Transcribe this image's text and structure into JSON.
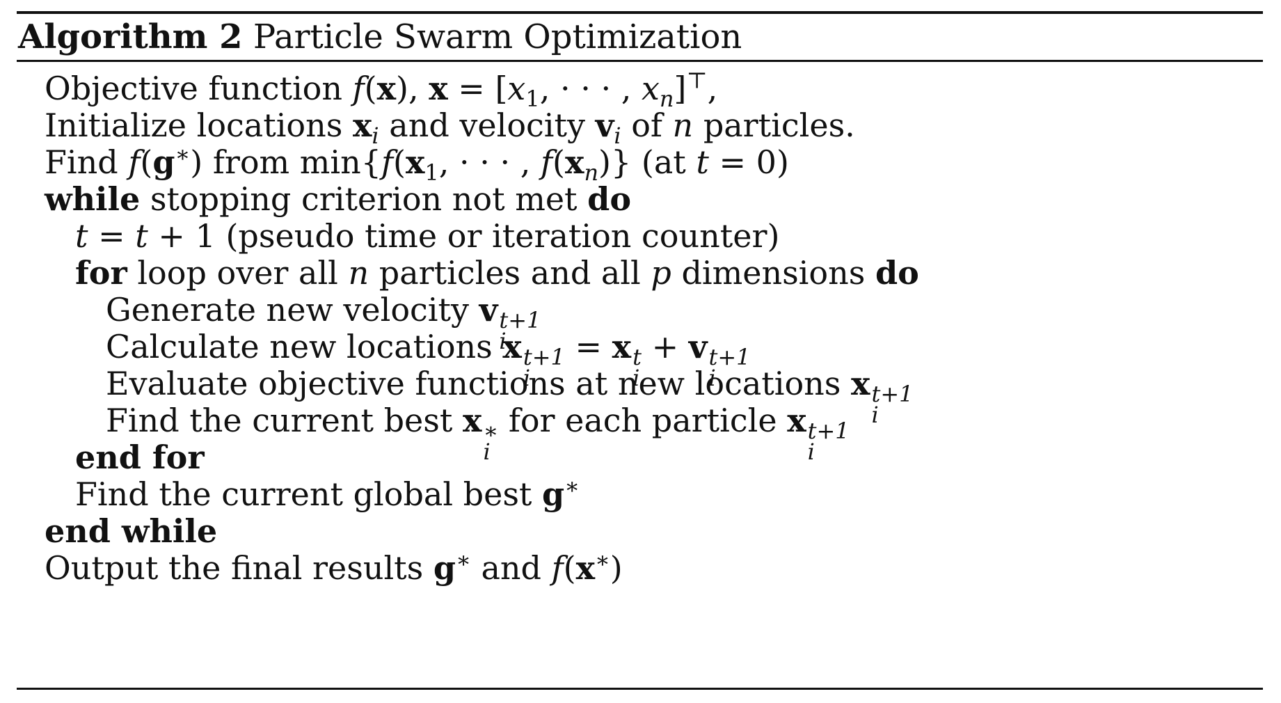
{
  "caption": {
    "label": "Algorithm 2",
    "title": "Particle Swarm Optimization"
  },
  "lines": {
    "l1": "Objective function",
    "l2a": "Initialize locations",
    "l2b": "and velocity",
    "l2c": "of",
    "l2d": "particles.",
    "l3a": "Find",
    "l3b": "from min{",
    "l3c": "(at",
    "l4a": "while",
    "l4b": "stopping criterion not met",
    "l4c": "do",
    "l5": "(pseudo time or iteration counter)",
    "l6a": "for",
    "l6b": "loop over all",
    "l6c": "particles and all",
    "l6d": "dimensions",
    "l6e": "do",
    "l7": "Generate new velocity",
    "l8": "Calculate new locations",
    "l9": "Evaluate objective functions at new locations",
    "l10a": "Find the current best",
    "l10b": "for each particle",
    "l11": "end for",
    "l12": "Find the current global best",
    "l13": "end while",
    "l14a": "Output the final results",
    "l14b": "and"
  },
  "math": {
    "n": "n",
    "p": "p",
    "t": "t",
    "eq": "=",
    "plus1": "+ 1",
    "zero": "0)"
  }
}
